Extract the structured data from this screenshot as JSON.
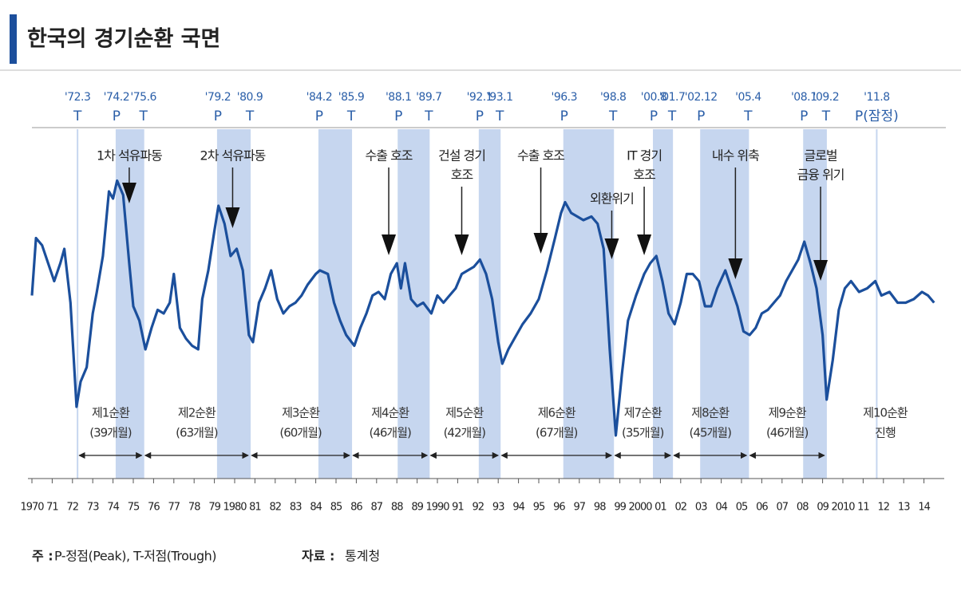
{
  "chart_data": {
    "type": "line",
    "title": "한국의 경기순환 국면",
    "xlim": [
      1970,
      2015
    ],
    "ylim": [
      0,
      100
    ],
    "xticks": [
      1970,
      {
        "value": 1971,
        "label": "71"
      },
      {
        "value": 1972,
        "label": "72"
      },
      {
        "value": 1973,
        "label": "73"
      },
      {
        "value": 1974,
        "label": "74"
      },
      {
        "value": 1975,
        "label": "75"
      },
      {
        "value": 1976,
        "label": "76"
      },
      {
        "value": 1977,
        "label": "77"
      },
      {
        "value": 1978,
        "label": "78"
      },
      {
        "value": 1979,
        "label": "79"
      },
      1980,
      {
        "value": 1981,
        "label": "81"
      },
      {
        "value": 1982,
        "label": "82"
      },
      {
        "value": 1983,
        "label": "83"
      },
      {
        "value": 1984,
        "label": "84"
      },
      {
        "value": 1985,
        "label": "85"
      },
      {
        "value": 1986,
        "label": "86"
      },
      {
        "value": 1987,
        "label": "87"
      },
      {
        "value": 1988,
        "label": "88"
      },
      {
        "value": 1989,
        "label": "89"
      },
      1990,
      {
        "value": 1991,
        "label": "91"
      },
      {
        "value": 1992,
        "label": "92"
      },
      {
        "value": 1993,
        "label": "93"
      },
      {
        "value": 1994,
        "label": "94"
      },
      {
        "value": 1995,
        "label": "95"
      },
      {
        "value": 1996,
        "label": "96"
      },
      {
        "value": 1997,
        "label": "97"
      },
      {
        "value": 1998,
        "label": "98"
      },
      {
        "value": 1999,
        "label": "99"
      },
      2000,
      {
        "value": 2001,
        "label": "01"
      },
      {
        "value": 2002,
        "label": "02"
      },
      {
        "value": 2003,
        "label": "03"
      },
      {
        "value": 2004,
        "label": "04"
      },
      {
        "value": 2005,
        "label": "05"
      },
      {
        "value": 2006,
        "label": "06"
      },
      {
        "value": 2007,
        "label": "07"
      },
      {
        "value": 2008,
        "label": "08"
      },
      {
        "value": 2009,
        "label": "09"
      },
      2010,
      {
        "value": 2011,
        "label": "11"
      },
      {
        "value": 2012,
        "label": "12"
      },
      {
        "value": 2013,
        "label": "13"
      },
      {
        "value": 2014,
        "label": "14"
      }
    ],
    "x": [
      1970.0,
      1970.2,
      1970.5,
      1970.8,
      1971.1,
      1971.4,
      1971.6,
      1971.9,
      1972.2,
      1972.4,
      1972.7,
      1973.0,
      1973.2,
      1973.5,
      1973.8,
      1974.0,
      1974.2,
      1974.5,
      1974.8,
      1975.0,
      1975.3,
      1975.6,
      1975.9,
      1976.2,
      1976.5,
      1976.8,
      1977.0,
      1977.3,
      1977.6,
      1977.9,
      1978.2,
      1978.4,
      1978.7,
      1979.0,
      1979.2,
      1979.5,
      1979.8,
      1980.1,
      1980.4,
      1980.7,
      1980.9,
      1981.2,
      1981.5,
      1981.8,
      1982.1,
      1982.4,
      1982.7,
      1983.0,
      1983.3,
      1983.6,
      1984.0,
      1984.2,
      1984.6,
      1984.9,
      1985.2,
      1985.5,
      1985.9,
      1986.2,
      1986.5,
      1986.8,
      1987.1,
      1987.4,
      1987.7,
      1988.0,
      1988.2,
      1988.4,
      1988.7,
      1989.0,
      1989.3,
      1989.7,
      1990.0,
      1990.3,
      1990.6,
      1990.9,
      1991.2,
      1991.5,
      1991.8,
      1992.1,
      1992.4,
      1992.7,
      1993.0,
      1993.2,
      1993.5,
      1993.8,
      1994.2,
      1994.6,
      1995.0,
      1995.4,
      1995.8,
      1996.1,
      1996.3,
      1996.6,
      1996.9,
      1997.2,
      1997.6,
      1997.9,
      1998.2,
      1998.5,
      1998.8,
      1999.1,
      1999.4,
      1999.8,
      2000.2,
      2000.5,
      2000.8,
      2001.1,
      2001.4,
      2001.7,
      2002.0,
      2002.3,
      2002.6,
      2002.9,
      2003.2,
      2003.5,
      2003.8,
      2004.2,
      2004.5,
      2004.8,
      2005.1,
      2005.4,
      2005.7,
      2006.0,
      2006.3,
      2006.6,
      2006.9,
      2007.2,
      2007.5,
      2007.8,
      2008.1,
      2008.4,
      2008.7,
      2009.0,
      2009.2,
      2009.5,
      2009.8,
      2010.1,
      2010.4,
      2010.8,
      2011.2,
      2011.6,
      2011.9,
      2012.3,
      2012.7,
      2013.1,
      2013.5,
      2013.9,
      2014.2,
      2014.5
    ],
    "series": [
      {
        "color": "#1b4f9c",
        "values": [
          51,
          67,
          65,
          60,
          55,
          60,
          64,
          49,
          20,
          27,
          31,
          46,
          52,
          62,
          80,
          78,
          83,
          79,
          60,
          48,
          44,
          36,
          42,
          47,
          46,
          49,
          57,
          42,
          39,
          37,
          36,
          50,
          58,
          69,
          76,
          71,
          62,
          64,
          58,
          40,
          38,
          49,
          53,
          58,
          50,
          46,
          48,
          49,
          51,
          54,
          57,
          58,
          57,
          49,
          44,
          40,
          37,
          42,
          46,
          51,
          52,
          50,
          57,
          60,
          53,
          60,
          50,
          48,
          49,
          46,
          51,
          49,
          51,
          53,
          57,
          58,
          59,
          61,
          57,
          50,
          38,
          32,
          36,
          39,
          43,
          46,
          50,
          58,
          67,
          74,
          77,
          74,
          73,
          72,
          73,
          71,
          64,
          36,
          12,
          29,
          44,
          51,
          57,
          60,
          62,
          55,
          46,
          43,
          49,
          57,
          57,
          55,
          48,
          48,
          53,
          58,
          53,
          48,
          41,
          40,
          42,
          46,
          47,
          49,
          51,
          55,
          58,
          61,
          66,
          60,
          53,
          40,
          22,
          33,
          47,
          53,
          55,
          52,
          53,
          55,
          51,
          52,
          49,
          49,
          50,
          52,
          51,
          49
        ]
      }
    ],
    "band_color": "#c6d6ef",
    "turning_points": [
      {
        "label": "'72.3",
        "kind": "T",
        "x": 1972.25
      },
      {
        "label": "'74.2",
        "kind": "P",
        "x": 1974.17
      },
      {
        "label": "'75.6",
        "kind": "T",
        "x": 1975.5
      },
      {
        "label": "'79.2",
        "kind": "P",
        "x": 1979.17
      },
      {
        "label": "'80.9",
        "kind": "T",
        "x": 1980.75
      },
      {
        "label": "'84.2",
        "kind": "P",
        "x": 1984.17
      },
      {
        "label": "'85.9",
        "kind": "T",
        "x": 1985.75
      },
      {
        "label": "'88.1",
        "kind": "P",
        "x": 1988.08
      },
      {
        "label": "'89.7",
        "kind": "T",
        "x": 1989.58
      },
      {
        "label": "'92.1",
        "kind": "P",
        "x": 1992.08
      },
      {
        "label": "'93.1",
        "kind": "T",
        "x": 1993.08
      },
      {
        "label": "'96.3",
        "kind": "P",
        "x": 1996.25
      },
      {
        "label": "'98.8",
        "kind": "T",
        "x": 1998.67
      },
      {
        "label": "'00.8",
        "kind": "P",
        "x": 2000.67
      },
      {
        "label": "'01.7",
        "kind": "T",
        "x": 2001.58
      },
      {
        "label": "'02.12",
        "kind": "P",
        "x": 2003.0
      },
      {
        "label": "'05.4",
        "kind": "T",
        "x": 2005.33
      },
      {
        "label": "'08.1",
        "kind": "P",
        "x": 2008.08
      },
      {
        "label": "'09.2",
        "kind": "T",
        "x": 2009.17
      },
      {
        "label": "'11.8",
        "kind": "P(잠정)",
        "x": 2011.67
      }
    ],
    "cycles": [
      {
        "lines": [
          "제1순환",
          "(39개월)"
        ]
      },
      {
        "lines": [
          "제2순환",
          "(63개월)"
        ]
      },
      {
        "lines": [
          "제3순환",
          "(60개월)"
        ]
      },
      {
        "lines": [
          "제4순환",
          "(46개월)"
        ]
      },
      {
        "lines": [
          "제5순환",
          "(42개월)"
        ]
      },
      {
        "lines": [
          "제6순환",
          "(67개월)"
        ]
      },
      {
        "lines": [
          "제7순환",
          "(35개월)"
        ]
      },
      {
        "lines": [
          "제8순환",
          "(45개월)"
        ]
      },
      {
        "lines": [
          "제9순환",
          "(46개월)"
        ]
      },
      {
        "lines": [
          "제10순환",
          "진행"
        ]
      }
    ],
    "annotations": [
      {
        "lines": [
          "1차 석유파동"
        ],
        "x": 1974.8
      },
      {
        "lines": [
          "2차 석유파동"
        ],
        "x": 1979.9
      },
      {
        "lines": [
          "수출 호조"
        ],
        "x": 1987.6
      },
      {
        "lines": [
          "건설 경기",
          "호조"
        ],
        "x": 1991.2
      },
      {
        "lines": [
          "수출 호조"
        ],
        "x": 1995.1
      },
      {
        "lines": [
          "외환위기"
        ],
        "x": 1998.6
      },
      {
        "lines": [
          "IT 경기",
          "호조"
        ],
        "x": 2000.2
      },
      {
        "lines": [
          "내수 위축"
        ],
        "x": 2004.7
      },
      {
        "lines": [
          "글로벌",
          "금융 위기"
        ],
        "x": 2008.9
      }
    ],
    "note_label": "주 :",
    "note": "P-정점(Peak), T-저점(Trough)",
    "source_label": "자료 :",
    "source": "통계청"
  }
}
